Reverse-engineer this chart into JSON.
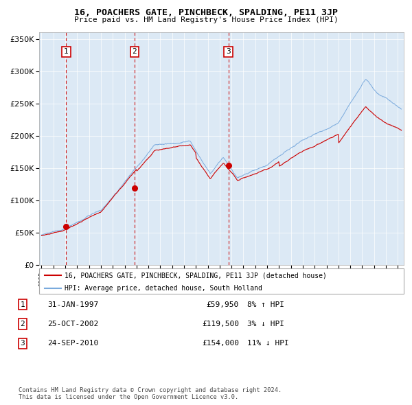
{
  "title": "16, POACHERS GATE, PINCHBECK, SPALDING, PE11 3JP",
  "subtitle": "Price paid vs. HM Land Registry's House Price Index (HPI)",
  "hpi_label": "HPI: Average price, detached house, South Holland",
  "property_label": "16, POACHERS GATE, PINCHBECK, SPALDING, PE11 3JP (detached house)",
  "red_color": "#cc0000",
  "blue_color": "#7aaadd",
  "plot_bg": "#dce9f5",
  "purchases": [
    {
      "num": 1,
      "date": "31-JAN-1997",
      "price": 59950,
      "year": 1997.08,
      "hpi_pct": "8% ↑ HPI"
    },
    {
      "num": 2,
      "date": "25-OCT-2002",
      "price": 119500,
      "year": 2002.82,
      "hpi_pct": "3% ↓ HPI"
    },
    {
      "num": 3,
      "date": "24-SEP-2010",
      "price": 154000,
      "year": 2010.73,
      "hpi_pct": "11% ↓ HPI"
    }
  ],
  "ylim": [
    0,
    360000
  ],
  "xlim_start": 1994.8,
  "xlim_end": 2025.5,
  "footer": "Contains HM Land Registry data © Crown copyright and database right 2024.\nThis data is licensed under the Open Government Licence v3.0."
}
